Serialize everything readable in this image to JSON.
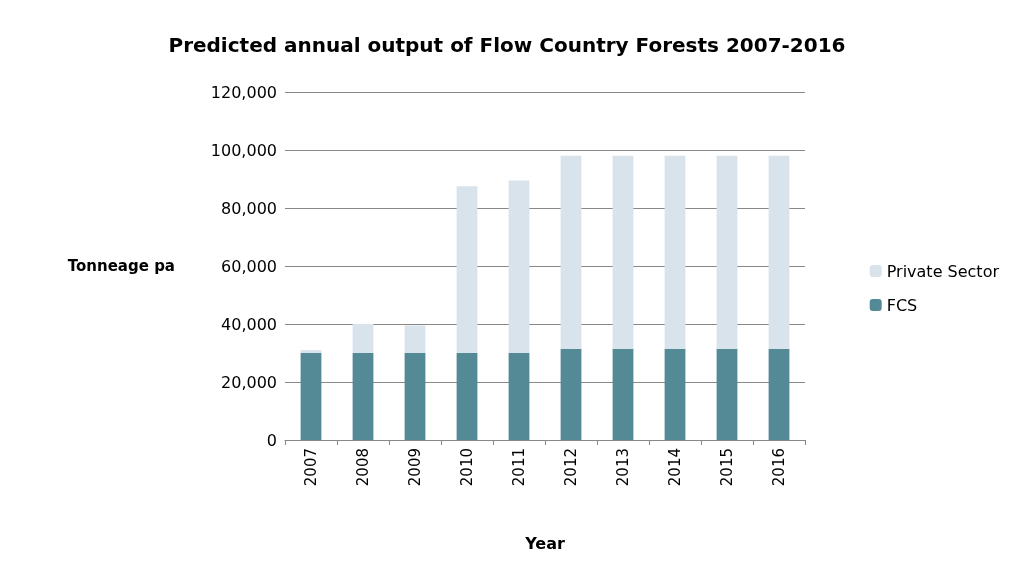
{
  "chart_data": {
    "type": "bar",
    "title": "Predicted annual output of Flow Country Forests 2007-2016",
    "xlabel": "Year",
    "ylabel": "Tonneage pa",
    "categories": [
      "2007",
      "2008",
      "2009",
      "2010",
      "2011",
      "2012",
      "2013",
      "2014",
      "2015",
      "2016"
    ],
    "series": [
      {
        "name": "FCS",
        "color": "#548a96",
        "values": [
          30000,
          30000,
          30000,
          30000,
          30000,
          31500,
          31500,
          31500,
          31500,
          31500
        ]
      },
      {
        "name": "Private Sector",
        "color": "#d9e3ec",
        "values": [
          1000,
          10000,
          9500,
          57500,
          59500,
          66500,
          66500,
          66500,
          66500,
          66500
        ]
      }
    ],
    "stacked": true,
    "ylim": [
      0,
      120000
    ],
    "yticks": [
      0,
      {
        "value": 20000,
        "label": "20,000"
      },
      {
        "value": 40000,
        "label": "40,000"
      },
      {
        "value": 60000,
        "label": "60,000"
      },
      {
        "value": 80000,
        "label": "80,000"
      },
      {
        "value": 100000,
        "label": "100,000"
      },
      {
        "value": 120000,
        "label": "120,000"
      }
    ],
    "grid": "y",
    "legend": "right"
  }
}
